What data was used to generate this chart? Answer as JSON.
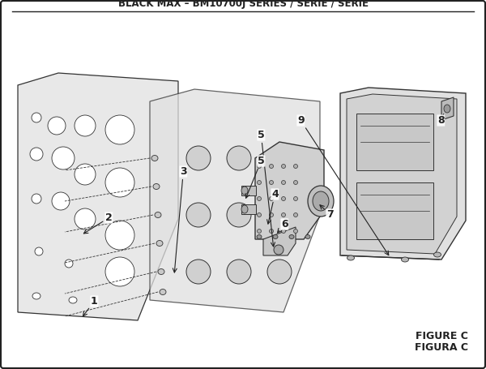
{
  "title": "BLACK MAX – BM10700J SERIES / SÉRIE / SERIE",
  "title_fontsize": 9,
  "figure_c_label": "FIGURE C",
  "figura_c_label": "FIGURA C",
  "bg_color": "#f5f5f5",
  "border_color": "#222222",
  "line_color": "#333333",
  "label_color": "#111111",
  "figsize": [
    6.0,
    4.55
  ],
  "dpi": 100
}
